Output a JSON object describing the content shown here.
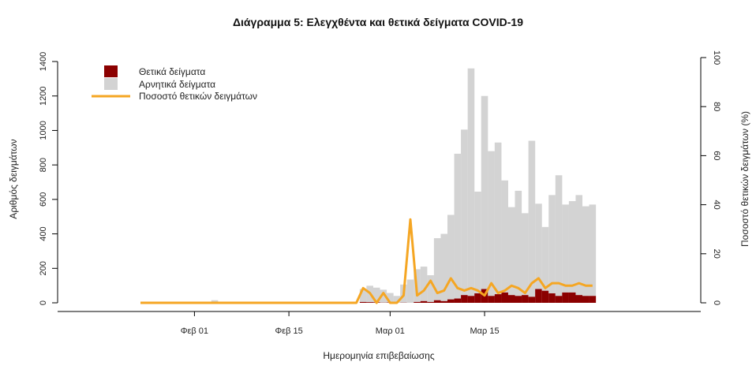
{
  "chart_data": {
    "type": "bar",
    "title": "Διάγραμμα 5: Ελεγχθέντα και θετικά δείγματα COVID-19",
    "xlabel": "Ημερομηνία επιβεβαίωσης",
    "ylabel": "Αριθμός δειγμάτων",
    "y2label": "Ποσοστό θετικών δειγμάτων (%)",
    "ylim": [
      0,
      1400
    ],
    "y2lim": [
      0,
      100
    ],
    "y_ticks": [
      0,
      200,
      400,
      600,
      800,
      1000,
      1200,
      1400
    ],
    "y2_ticks": [
      0,
      20,
      40,
      60,
      80,
      100
    ],
    "x_ticks": [
      "Φεβ 01",
      "Φεβ 15",
      "Μαρ 01",
      "Μαρ 15"
    ],
    "legend": {
      "position": "top-left",
      "positive": "Θετικά δείγματα",
      "negative": "Αρνητικά δείγματα",
      "rate": "Ποσοστό θετικών δειγμάτων"
    },
    "colors": {
      "positive": "#8b0000",
      "negative": "#d3d3d3",
      "rate": "#f5a623"
    },
    "dates": [
      "Ιαν 24",
      "Ιαν 25",
      "Ιαν 26",
      "Ιαν 27",
      "Ιαν 28",
      "Ιαν 29",
      "Ιαν 30",
      "Ιαν 31",
      "Φεβ 01",
      "Φεβ 02",
      "Φεβ 03",
      "Φεβ 04",
      "Φεβ 05",
      "Φεβ 06",
      "Φεβ 07",
      "Φεβ 08",
      "Φεβ 09",
      "Φεβ 10",
      "Φεβ 11",
      "Φεβ 12",
      "Φεβ 13",
      "Φεβ 14",
      "Φεβ 15",
      "Φεβ 16",
      "Φεβ 17",
      "Φεβ 18",
      "Φεβ 19",
      "Φεβ 20",
      "Φεβ 21",
      "Φεβ 22",
      "Φεβ 23",
      "Φεβ 24",
      "Φεβ 25",
      "Φεβ 26",
      "Φεβ 27",
      "Φεβ 28",
      "Φεβ 29",
      "Μαρ 01",
      "Μαρ 02",
      "Μαρ 03",
      "Μαρ 04",
      "Μαρ 05",
      "Μαρ 06",
      "Μαρ 07",
      "Μαρ 08",
      "Μαρ 09",
      "Μαρ 10",
      "Μαρ 11",
      "Μαρ 12",
      "Μαρ 13",
      "Μαρ 14",
      "Μαρ 15",
      "Μαρ 16",
      "Μαρ 17",
      "Μαρ 18",
      "Μαρ 19",
      "Μαρ 20",
      "Μαρ 21",
      "Μαρ 22",
      "Μαρ 23",
      "Μαρ 24",
      "Μαρ 25",
      "Μαρ 26",
      "Μαρ 27",
      "Μαρ 28",
      "Μαρ 29",
      "Μαρ 30",
      "Μαρ 31"
    ],
    "series": [
      {
        "name": "Θετικά δείγματα",
        "values": [
          0,
          0,
          0,
          0,
          0,
          0,
          0,
          0,
          0,
          0,
          0,
          0,
          0,
          0,
          0,
          0,
          0,
          0,
          0,
          0,
          0,
          0,
          0,
          0,
          0,
          0,
          0,
          0,
          0,
          0,
          0,
          0,
          0,
          5,
          4,
          3,
          1,
          2,
          0,
          1,
          0,
          5,
          10,
          5,
          15,
          10,
          20,
          25,
          45,
          40,
          55,
          80,
          40,
          50,
          60,
          45,
          40,
          45,
          35,
          80,
          70,
          55,
          40,
          60,
          60,
          45,
          40,
          40
        ]
      },
      {
        "name": "Αρνητικά δείγματα",
        "values": [
          0,
          0,
          0,
          0,
          0,
          0,
          0,
          0,
          0,
          0,
          0,
          15,
          0,
          0,
          0,
          0,
          0,
          0,
          0,
          0,
          0,
          0,
          0,
          0,
          0,
          0,
          0,
          0,
          0,
          0,
          0,
          0,
          0,
          75,
          95,
          85,
          75,
          55,
          40,
          105,
          135,
          190,
          200,
          155,
          360,
          390,
          490,
          840,
          960,
          1320,
          590,
          1120,
          840,
          880,
          650,
          510,
          610,
          475,
          905,
          495,
          370,
          570,
          700,
          510,
          530,
          580,
          520,
          530
        ]
      },
      {
        "name": "Ποσοστό θετικών δειγμάτων",
        "values": [
          0,
          0,
          0,
          0,
          0,
          0,
          0,
          0,
          0,
          0,
          0,
          0,
          0,
          0,
          0,
          0,
          0,
          0,
          0,
          0,
          0,
          0,
          0,
          0,
          0,
          0,
          0,
          0,
          0,
          0,
          0,
          0,
          0,
          6,
          4,
          0,
          4,
          0,
          0,
          3,
          34,
          3,
          5,
          9,
          4,
          5,
          10,
          6,
          5,
          6,
          5,
          3,
          8,
          4,
          5,
          7,
          6,
          4,
          8,
          10,
          6,
          8,
          8,
          7,
          7,
          8,
          7,
          7
        ]
      }
    ]
  }
}
